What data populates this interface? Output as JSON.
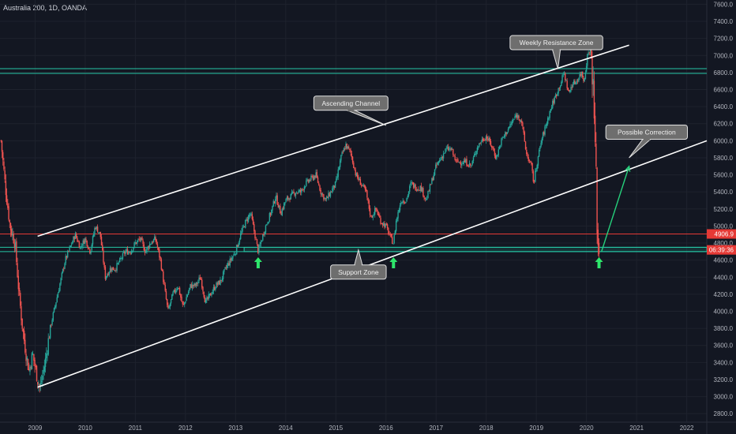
{
  "header": {
    "title": "Australia 200, 1D, OANDA"
  },
  "chart_data": {
    "type": "candlestick",
    "symbol": "Australia 200",
    "interval": "1D",
    "source": "OANDA",
    "y_axis_ticks": [
      2800,
      3000,
      3200,
      3400,
      3600,
      3800,
      4000,
      4200,
      4400,
      4600,
      4800,
      5000,
      5200,
      5400,
      5600,
      5800,
      6000,
      6200,
      6400,
      6600,
      6800,
      7000,
      7200,
      7400,
      7600
    ],
    "y_axis_tick_labels": [
      "2800.0",
      "3000.0",
      "3200.0",
      "3400.0",
      "3600.0",
      "3800.0",
      "4000.0",
      "4200.0",
      "4400.0",
      "4600.0",
      "4800.0",
      "5000.0",
      "5200.0",
      "5400.0",
      "5600.0",
      "5800.0",
      "6000.0",
      "6200.0",
      "6400.0",
      "6600.0",
      "6800.0",
      "7000.0",
      "7200.0",
      "7400.0",
      "7600.0"
    ],
    "ylim": [
      2700,
      7650
    ],
    "x_axis_labels": [
      "2009",
      "2010",
      "2011",
      "2012",
      "2013",
      "2014",
      "2015",
      "2016",
      "2017",
      "2018",
      "2019",
      "2020",
      "2021",
      "2022"
    ],
    "xlim": [
      2008.3,
      2022.4
    ],
    "price_path": [
      [
        2008.32,
        6000
      ],
      [
        2008.4,
        5500
      ],
      [
        2008.5,
        5000
      ],
      [
        2008.6,
        4800
      ],
      [
        2008.68,
        4200
      ],
      [
        2008.75,
        3800
      ],
      [
        2008.82,
        3500
      ],
      [
        2008.88,
        3300
      ],
      [
        2008.95,
        3500
      ],
      [
        2009.05,
        3200
      ],
      [
        2009.1,
        3100
      ],
      [
        2009.2,
        3400
      ],
      [
        2009.3,
        3800
      ],
      [
        2009.45,
        4200
      ],
      [
        2009.6,
        4600
      ],
      [
        2009.7,
        4750
      ],
      [
        2009.8,
        4900
      ],
      [
        2009.9,
        4750
      ],
      [
        2010.0,
        4850
      ],
      [
        2010.1,
        4700
      ],
      [
        2010.2,
        5000
      ],
      [
        2010.3,
        4900
      ],
      [
        2010.4,
        4400
      ],
      [
        2010.5,
        4500
      ],
      [
        2010.6,
        4500
      ],
      [
        2010.7,
        4600
      ],
      [
        2010.8,
        4700
      ],
      [
        2010.9,
        4700
      ],
      [
        2011.0,
        4800
      ],
      [
        2011.1,
        4850
      ],
      [
        2011.2,
        4700
      ],
      [
        2011.3,
        4800
      ],
      [
        2011.4,
        4850
      ],
      [
        2011.5,
        4600
      ],
      [
        2011.55,
        4400
      ],
      [
        2011.65,
        4000
      ],
      [
        2011.75,
        4200
      ],
      [
        2011.85,
        4300
      ],
      [
        2011.95,
        4050
      ],
      [
        2012.1,
        4300
      ],
      [
        2012.2,
        4300
      ],
      [
        2012.3,
        4400
      ],
      [
        2012.4,
        4100
      ],
      [
        2012.5,
        4200
      ],
      [
        2012.6,
        4300
      ],
      [
        2012.7,
        4350
      ],
      [
        2012.8,
        4500
      ],
      [
        2012.9,
        4600
      ],
      [
        2013.0,
        4700
      ],
      [
        2013.1,
        4900
      ],
      [
        2013.2,
        5050
      ],
      [
        2013.3,
        5150
      ],
      [
        2013.35,
        5000
      ],
      [
        2013.45,
        4700
      ],
      [
        2013.5,
        4800
      ],
      [
        2013.6,
        5000
      ],
      [
        2013.7,
        5150
      ],
      [
        2013.8,
        5350
      ],
      [
        2013.9,
        5150
      ],
      [
        2014.0,
        5300
      ],
      [
        2014.1,
        5350
      ],
      [
        2014.2,
        5400
      ],
      [
        2014.3,
        5400
      ],
      [
        2014.4,
        5500
      ],
      [
        2014.5,
        5550
      ],
      [
        2014.6,
        5600
      ],
      [
        2014.7,
        5400
      ],
      [
        2014.8,
        5300
      ],
      [
        2014.9,
        5400
      ],
      [
        2015.0,
        5500
      ],
      [
        2015.1,
        5800
      ],
      [
        2015.2,
        5950
      ],
      [
        2015.3,
        5850
      ],
      [
        2015.4,
        5600
      ],
      [
        2015.5,
        5500
      ],
      [
        2015.6,
        5400
      ],
      [
        2015.7,
        5100
      ],
      [
        2015.8,
        5200
      ],
      [
        2015.9,
        5050
      ],
      [
        2016.0,
        5000
      ],
      [
        2016.1,
        4850
      ],
      [
        2016.15,
        4800
      ],
      [
        2016.2,
        5050
      ],
      [
        2016.3,
        5300
      ],
      [
        2016.4,
        5300
      ],
      [
        2016.5,
        5500
      ],
      [
        2016.6,
        5450
      ],
      [
        2016.7,
        5450
      ],
      [
        2016.8,
        5300
      ],
      [
        2016.9,
        5500
      ],
      [
        2017.0,
        5700
      ],
      [
        2017.1,
        5800
      ],
      [
        2017.2,
        5900
      ],
      [
        2017.3,
        5900
      ],
      [
        2017.4,
        5750
      ],
      [
        2017.5,
        5750
      ],
      [
        2017.6,
        5750
      ],
      [
        2017.7,
        5700
      ],
      [
        2017.8,
        5900
      ],
      [
        2017.9,
        6000
      ],
      [
        2018.0,
        6050
      ],
      [
        2018.1,
        5950
      ],
      [
        2018.2,
        5800
      ],
      [
        2018.3,
        6000
      ],
      [
        2018.4,
        6100
      ],
      [
        2018.5,
        6200
      ],
      [
        2018.6,
        6300
      ],
      [
        2018.7,
        6250
      ],
      [
        2018.8,
        5850
      ],
      [
        2018.9,
        5700
      ],
      [
        2018.95,
        5500
      ],
      [
        2019.0,
        5700
      ],
      [
        2019.1,
        6000
      ],
      [
        2019.2,
        6200
      ],
      [
        2019.3,
        6400
      ],
      [
        2019.4,
        6550
      ],
      [
        2019.5,
        6700
      ],
      [
        2019.55,
        6800
      ],
      [
        2019.65,
        6550
      ],
      [
        2019.7,
        6650
      ],
      [
        2019.8,
        6700
      ],
      [
        2019.9,
        6800
      ],
      [
        2019.95,
        6700
      ],
      [
        2020.02,
        7000
      ],
      [
        2020.08,
        7100
      ],
      [
        2020.12,
        6800
      ],
      [
        2020.16,
        6200
      ],
      [
        2020.2,
        5400
      ],
      [
        2020.22,
        4800
      ],
      [
        2020.25,
        4700
      ]
    ],
    "horizontal_lines": [
      {
        "name": "resistance-upper",
        "value": 6845,
        "color": "#26c6a6"
      },
      {
        "name": "resistance-lower",
        "value": 6790,
        "color": "#26c6a6"
      },
      {
        "name": "support-upper",
        "value": 4750,
        "color": "#26c6a6"
      },
      {
        "name": "support-lower",
        "value": 4700,
        "color": "#26c6a6"
      },
      {
        "name": "current-price",
        "value": 4906.9,
        "color": "#e53935"
      }
    ],
    "trend_lines": [
      {
        "name": "channel-top",
        "from": [
          2009.05,
          4880
        ],
        "to": [
          2020.85,
          7120
        ],
        "color": "#ffffff"
      },
      {
        "name": "channel-bottom",
        "from": [
          2009.05,
          3110
        ],
        "to": [
          2022.4,
          6000
        ],
        "color": "#ffffff"
      }
    ],
    "projection_arrow": {
      "from": [
        2020.3,
        4700
      ],
      "to": [
        2020.85,
        5700
      ],
      "color": "#26d07c"
    },
    "annotations": [
      {
        "name": "weekly-resistance-zone",
        "text": "Weekly Resistance Zone",
        "at": [
          2019.4,
          7150
        ],
        "pointer": [
          2019.43,
          6840
        ]
      },
      {
        "name": "ascending-channel",
        "text": "Ascending Channel",
        "at": [
          2015.3,
          6440
        ],
        "pointer": [
          2016.0,
          6180
        ]
      },
      {
        "name": "possible-correction",
        "text": "Possible Correction",
        "at": [
          2021.2,
          6100
        ],
        "pointer": [
          2020.85,
          5800
        ]
      },
      {
        "name": "support-zone",
        "text": "Support Zone",
        "at": [
          2015.45,
          4460
        ],
        "pointer": [
          2015.45,
          4720
        ]
      }
    ],
    "support_arrows": [
      {
        "at": [
          2013.45,
          4560
        ]
      },
      {
        "at": [
          2016.15,
          4560
        ]
      },
      {
        "at": [
          2020.25,
          4560
        ]
      }
    ],
    "price_tags": [
      {
        "name": "last-price",
        "text": "4906.9",
        "value": 4906.9,
        "color": "#e53935"
      },
      {
        "name": "countdown",
        "text": "06:39:36",
        "value": 4720,
        "color": "#e53935"
      }
    ]
  }
}
